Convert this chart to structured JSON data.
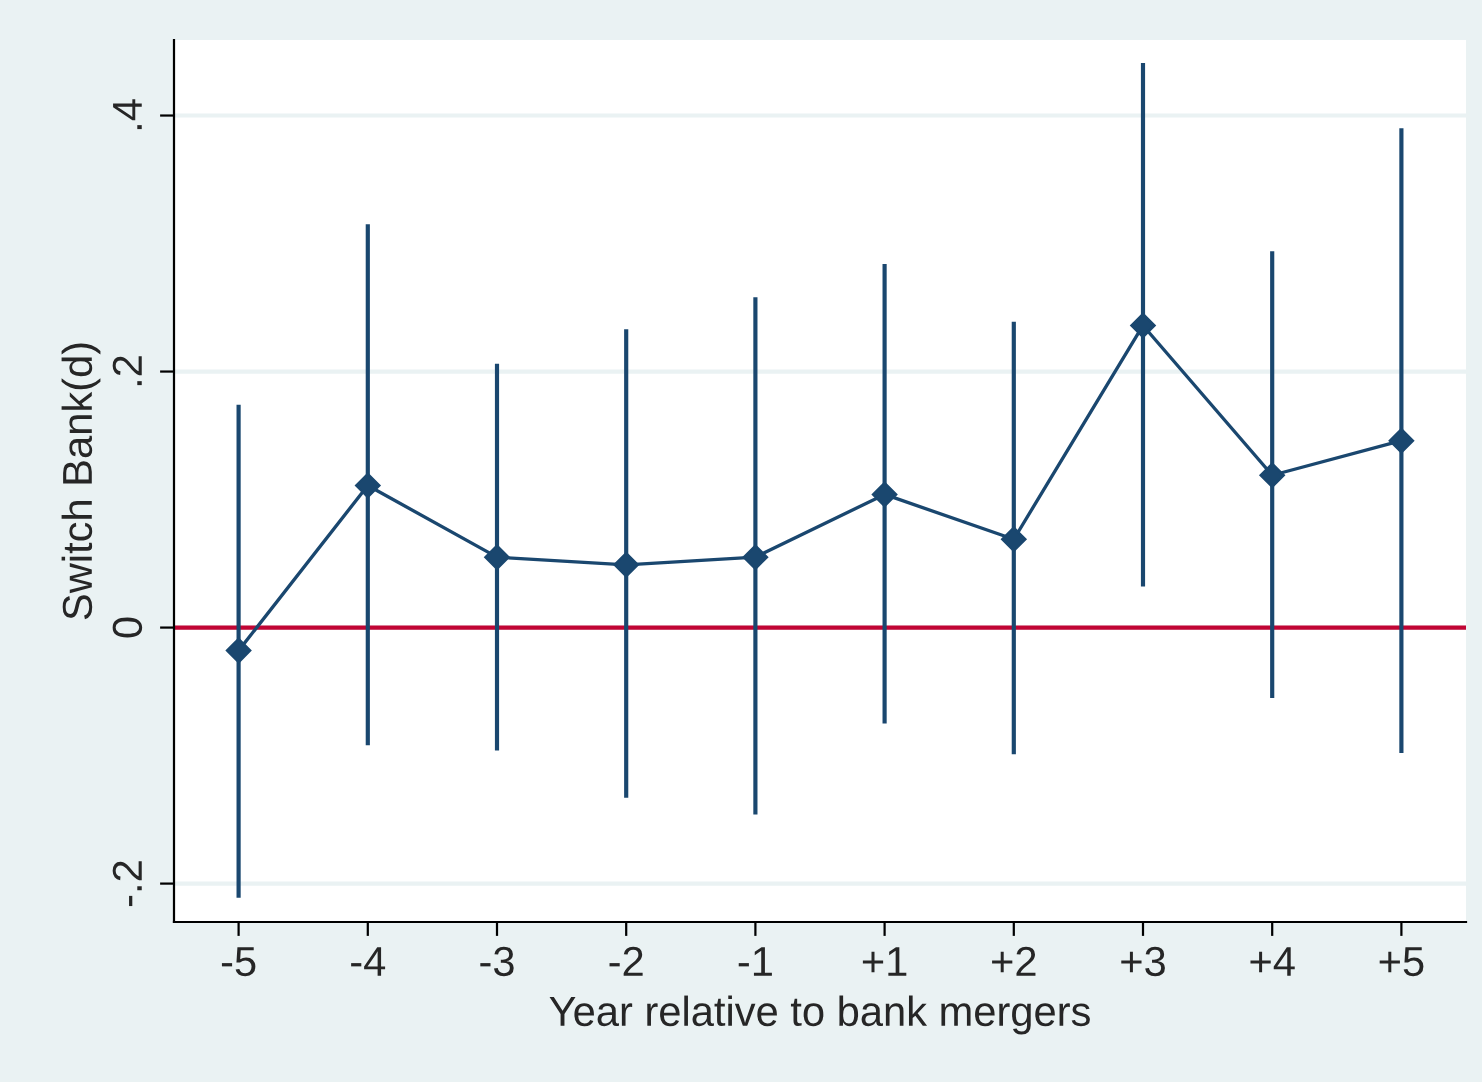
{
  "chart_data": {
    "type": "line",
    "xlabel": "Year relative to bank mergers",
    "ylabel": "Switch Bank(d)",
    "categories": [
      "-5",
      "-4",
      "-3",
      "-2",
      "-1",
      "+1",
      "+2",
      "+3",
      "+4",
      "+5"
    ],
    "series": [
      {
        "color": "#1a476f",
        "values": [
          -0.018,
          0.111,
          0.055,
          0.049,
          0.055,
          0.104,
          0.069,
          0.236,
          0.119,
          0.146
        ],
        "errors": [
          [
            -0.211,
            0.174
          ],
          [
            -0.092,
            0.315
          ],
          [
            -0.096,
            0.206
          ],
          [
            -0.133,
            0.233
          ],
          [
            -0.146,
            0.258
          ],
          [
            -0.075,
            0.284
          ],
          [
            -0.099,
            0.239
          ],
          [
            0.032,
            0.441
          ],
          [
            -0.055,
            0.294
          ],
          [
            -0.098,
            0.39
          ]
        ]
      }
    ],
    "marker": "diamond",
    "line_style": "solid",
    "ylim": [
      -0.23,
      0.459
    ],
    "yticks": [
      {
        "value": -0.2,
        "label": "-.2"
      },
      0,
      {
        "value": 0.2,
        "label": ".2"
      },
      {
        "value": 0.4,
        "label": ".4"
      }
    ],
    "grid": "y",
    "ref_lines": [
      {
        "axis": "y",
        "value": 0,
        "color": "#c10534"
      }
    ]
  }
}
